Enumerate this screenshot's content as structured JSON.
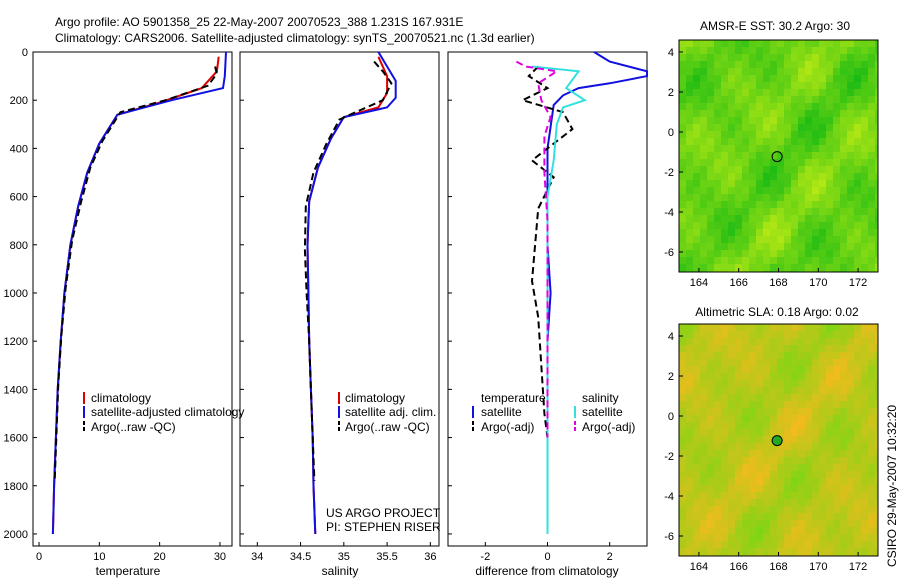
{
  "header": {
    "line1": "Argo profile: AO 5901358_25 22-May-2007 20070523_388 1.231S 167.931E",
    "line2": "Climatology: CARS2006. Satellite-adjusted climatology: synTS_20070521.nc (1.3d earlier)"
  },
  "colors": {
    "red": "#dd0000",
    "blue": "#1010e0",
    "black": "#000000",
    "cyan": "#33e0e0",
    "magenta": "#e000e0"
  },
  "depth_axis": {
    "ticks": [
      "0",
      "200",
      "400",
      "600",
      "800",
      "1000",
      "1200",
      "1400",
      "1600",
      "1800",
      "2000"
    ]
  },
  "credit": {
    "line1": "US ARGO PROJECT",
    "line2": "PI: STEPHEN RISER"
  },
  "footer": {
    "stamp": "CSIRO 29-May-2007 10:32:20"
  },
  "chart_data": [
    {
      "type": "line",
      "id": "temperature",
      "xlabel": "temperature",
      "xlim": [
        -1,
        32
      ],
      "ylim": [
        2050,
        0
      ],
      "xticks": [
        "0",
        "10",
        "20",
        "30"
      ],
      "legend": [
        "climatology",
        "satellite-adjusted climatology",
        "Argo(..raw -QC)"
      ],
      "series": [
        {
          "name": "climatology",
          "color": "red",
          "points": [
            [
              29.8,
              20
            ],
            [
              29.5,
              80
            ],
            [
              27,
              150
            ],
            [
              20,
              210
            ],
            [
              13,
              260
            ],
            [
              10,
              380
            ],
            [
              8,
              500
            ],
            [
              6.5,
              640
            ],
            [
              5.2,
              800
            ],
            [
              4.2,
              1000
            ],
            [
              3.6,
              1200
            ],
            [
              3.1,
              1400
            ],
            [
              2.8,
              1600
            ],
            [
              2.5,
              1800
            ],
            [
              2.3,
              2000
            ]
          ]
        },
        {
          "name": "satellite-adjusted climatology",
          "color": "blue",
          "points": [
            [
              31,
              0
            ],
            [
              30.8,
              100
            ],
            [
              30.5,
              150
            ],
            [
              22,
              200
            ],
            [
              13,
              260
            ],
            [
              10,
              380
            ],
            [
              8,
              500
            ],
            [
              6.5,
              640
            ],
            [
              5.2,
              800
            ],
            [
              4.2,
              1000
            ],
            [
              3.6,
              1200
            ],
            [
              3.1,
              1400
            ],
            [
              2.8,
              1600
            ],
            [
              2.5,
              1800
            ],
            [
              2.3,
              2000
            ]
          ]
        },
        {
          "name": "Argo(..raw -QC)",
          "color": "black",
          "dash": true,
          "points": [
            [
              29.2,
              60
            ],
            [
              29.5,
              90
            ],
            [
              28,
              140
            ],
            [
              21,
              200
            ],
            [
              13.5,
              250
            ],
            [
              10.5,
              370
            ],
            [
              8.5,
              480
            ],
            [
              7,
              620
            ],
            [
              5.5,
              780
            ],
            [
              4.4,
              980
            ],
            [
              3.7,
              1180
            ],
            [
              3.2,
              1380
            ],
            [
              2.9,
              1580
            ],
            [
              2.6,
              1780
            ]
          ]
        }
      ]
    },
    {
      "type": "line",
      "id": "salinity",
      "xlabel": "salinity",
      "xlim": [
        33.8,
        36.1
      ],
      "ylim": [
        2050,
        0
      ],
      "xticks": [
        "34",
        "34.5",
        "35",
        "35.5",
        "36"
      ],
      "legend": [
        "climatology",
        "satellite adj. clim.",
        "Argo(..raw -QC)"
      ],
      "series": [
        {
          "name": "climatology",
          "color": "red",
          "points": [
            [
              35.4,
              20
            ],
            [
              35.5,
              100
            ],
            [
              35.5,
              170
            ],
            [
              35.4,
              230
            ],
            [
              35.0,
              270
            ],
            [
              34.85,
              360
            ],
            [
              34.7,
              480
            ],
            [
              34.6,
              620
            ],
            [
              34.58,
              800
            ],
            [
              34.59,
              1000
            ],
            [
              34.6,
              1200
            ],
            [
              34.62,
              1400
            ],
            [
              34.64,
              1600
            ],
            [
              34.65,
              1800
            ],
            [
              34.67,
              2000
            ]
          ]
        },
        {
          "name": "satellite adj. clim.",
          "color": "blue",
          "points": [
            [
              35.4,
              0
            ],
            [
              35.5,
              60
            ],
            [
              35.6,
              120
            ],
            [
              35.6,
              190
            ],
            [
              35.5,
              230
            ],
            [
              35.0,
              270
            ],
            [
              34.85,
              360
            ],
            [
              34.7,
              480
            ],
            [
              34.6,
              620
            ],
            [
              34.58,
              800
            ],
            [
              34.59,
              1000
            ],
            [
              34.6,
              1200
            ],
            [
              34.62,
              1400
            ],
            [
              34.64,
              1600
            ],
            [
              34.65,
              1800
            ],
            [
              34.67,
              2000
            ]
          ]
        },
        {
          "name": "Argo(..raw -QC)",
          "color": "black",
          "dash": true,
          "points": [
            [
              35.35,
              40
            ],
            [
              35.45,
              80
            ],
            [
              35.55,
              130
            ],
            [
              35.45,
              200
            ],
            [
              35.2,
              240
            ],
            [
              34.95,
              280
            ],
            [
              34.8,
              380
            ],
            [
              34.65,
              500
            ],
            [
              34.56,
              640
            ],
            [
              34.55,
              820
            ],
            [
              34.57,
              1000
            ],
            [
              34.6,
              1200
            ],
            [
              34.62,
              1400
            ],
            [
              34.64,
              1600
            ],
            [
              34.66,
              1780
            ]
          ]
        }
      ]
    },
    {
      "type": "line",
      "id": "difference",
      "xlabel": "difference from climatology",
      "xlim": [
        -3.2,
        3.2
      ],
      "ylim": [
        2050,
        0
      ],
      "xticks": [
        "-2",
        "0",
        "2"
      ],
      "legend_titles": [
        "temperature",
        "salinity"
      ],
      "legend": [
        "satellite",
        "Argo(-adj)",
        "satellite",
        "Argo(-adj)"
      ],
      "series": [
        {
          "name": "temperature satellite",
          "color": "blue",
          "points": [
            [
              1.5,
              0
            ],
            [
              2,
              40
            ],
            [
              3.2,
              80
            ],
            [
              3.2,
              100
            ],
            [
              2,
              130
            ],
            [
              1,
              150
            ],
            [
              0.5,
              180
            ],
            [
              0.2,
              220
            ],
            [
              0,
              400
            ],
            [
              0,
              600
            ],
            [
              0,
              800
            ],
            [
              0.1,
              1000
            ],
            [
              0,
              1200
            ],
            [
              0,
              1400
            ],
            [
              0,
              1600
            ],
            [
              0,
              2000
            ]
          ]
        },
        {
          "name": "temperature Argo(-adj)",
          "color": "black",
          "dash": true,
          "points": [
            [
              -0.3,
              60
            ],
            [
              -0.6,
              100
            ],
            [
              0,
              150
            ],
            [
              -0.8,
              200
            ],
            [
              0.5,
              250
            ],
            [
              0.8,
              320
            ],
            [
              -0.5,
              450
            ],
            [
              0.2,
              520
            ],
            [
              -0.3,
              650
            ],
            [
              -0.4,
              800
            ],
            [
              -0.5,
              950
            ],
            [
              -0.3,
              1100
            ],
            [
              -0.2,
              1300
            ],
            [
              -0.1,
              1500
            ],
            [
              0,
              1600
            ]
          ]
        },
        {
          "name": "salinity satellite",
          "color": "cyan",
          "points": [
            [
              -0.5,
              60
            ],
            [
              1,
              80
            ],
            [
              0.6,
              150
            ],
            [
              1.2,
              200
            ],
            [
              0.5,
              230
            ],
            [
              0.3,
              300
            ],
            [
              0.2,
              450
            ],
            [
              0,
              600
            ],
            [
              0,
              800
            ],
            [
              0,
              1000
            ],
            [
              0,
              1200
            ],
            [
              0,
              1400
            ],
            [
              0,
              1600
            ],
            [
              0,
              1800
            ],
            [
              0,
              2000
            ]
          ]
        },
        {
          "name": "salinity Argo(-adj)",
          "color": "magenta",
          "dash": true,
          "points": [
            [
              -1,
              40
            ],
            [
              -0.7,
              60
            ],
            [
              0.3,
              80
            ],
            [
              -0.3,
              130
            ],
            [
              -0.2,
              200
            ],
            [
              0.1,
              270
            ],
            [
              -0.1,
              350
            ],
            [
              -0.1,
              500
            ],
            [
              0,
              700
            ],
            [
              0,
              900
            ],
            [
              0,
              1100
            ],
            [
              0,
              1300
            ],
            [
              0,
              1500
            ],
            [
              0,
              1600
            ]
          ]
        }
      ]
    },
    {
      "type": "heatmap",
      "id": "sst_map",
      "title": "AMSR-E SST: 30.2 Argo: 30",
      "xlim": [
        163,
        173
      ],
      "ylim": [
        -7,
        4.6
      ],
      "xticks": [
        "164",
        "166",
        "168",
        "170",
        "172"
      ],
      "yticks": [
        "4",
        "2",
        "0",
        "-2",
        "-4",
        "-6"
      ],
      "marker": {
        "lon": 167.931,
        "lat": -1.231
      }
    },
    {
      "type": "heatmap",
      "id": "sla_map",
      "title": "Altimetric SLA: 0.18 Argo: 0.02",
      "xlim": [
        163,
        173
      ],
      "ylim": [
        -7,
        4.6
      ],
      "xticks": [
        "164",
        "166",
        "168",
        "170",
        "172"
      ],
      "yticks": [
        "4",
        "2",
        "0",
        "-2",
        "-4",
        "-6"
      ],
      "marker": {
        "lon": 167.931,
        "lat": -1.231
      }
    }
  ]
}
